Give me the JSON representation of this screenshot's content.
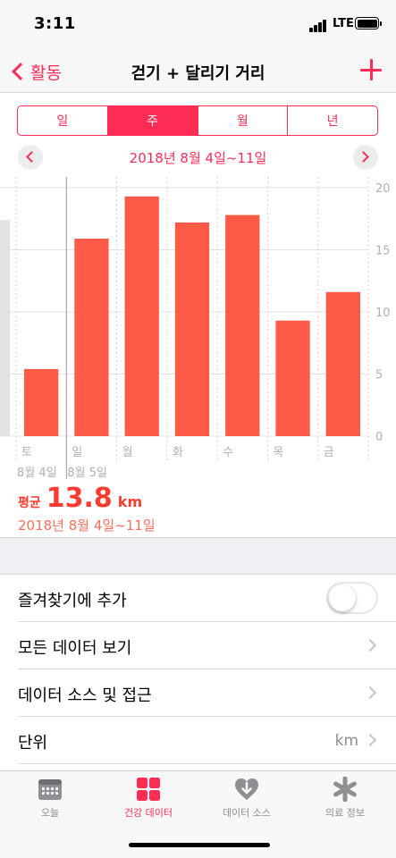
{
  "status_bar": {
    "time": "3:11",
    "network": "LTE"
  },
  "nav": {
    "back_label": "활동",
    "title": "걷기 + 달리기 거리"
  },
  "period_tabs": [
    {
      "label": "일",
      "active": false
    },
    {
      "label": "주",
      "active": true
    },
    {
      "label": "월",
      "active": false
    },
    {
      "label": "년",
      "active": false
    }
  ],
  "date_range": "2018년 8월 4일~11일",
  "chart_data": {
    "type": "bar",
    "categories": [
      "토",
      "일",
      "월",
      "화",
      "수",
      "목",
      "금"
    ],
    "values": [
      5.4,
      15.9,
      19.3,
      17.2,
      17.8,
      9.3,
      11.6
    ],
    "date_labels": [
      "8월 4일",
      "8월 5일"
    ],
    "y_ticks": [
      "20",
      "15",
      "10",
      "5",
      "0"
    ],
    "ylim": [
      0,
      20
    ],
    "bar_color": "#ff5a47",
    "previous_bar_value": 17.4,
    "grid": true
  },
  "average": {
    "label": "평균",
    "value": "13.8",
    "unit": "km",
    "range": "2018년 8월 4일~11일"
  },
  "settings": {
    "favorites_label": "즐겨찾기에 추가",
    "favorites_on": false,
    "all_data_label": "모든 데이터 보기",
    "data_sources_label": "데이터 소스 및 접근",
    "unit_label": "단위",
    "unit_value": "km"
  },
  "tabs": [
    {
      "label": "오늘",
      "icon": "calendar-icon",
      "active": false
    },
    {
      "label": "건강 데이터",
      "icon": "grid-icon",
      "active": true
    },
    {
      "label": "데이터 소스",
      "icon": "heart-download-icon",
      "active": false
    },
    {
      "label": "의료 정보",
      "icon": "asterisk-icon",
      "active": false
    }
  ],
  "colors": {
    "accent": "#ff2d55",
    "bar": "#ff5a47",
    "average": "#ff3b30"
  }
}
